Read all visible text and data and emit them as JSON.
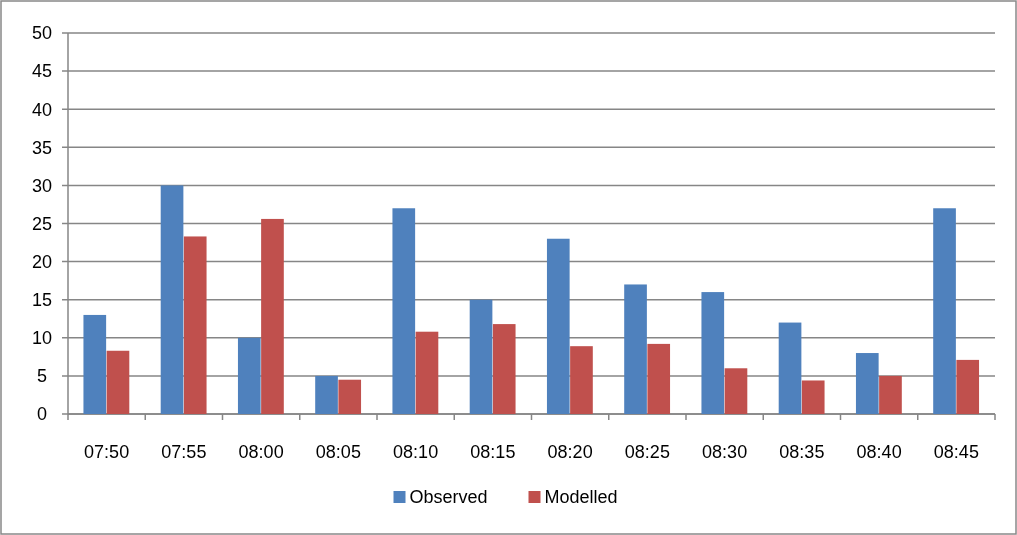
{
  "chart_data": {
    "type": "bar",
    "categories": [
      "07:50",
      "07:55",
      "08:00",
      "08:05",
      "08:10",
      "08:15",
      "08:20",
      "08:25",
      "08:30",
      "08:35",
      "08:40",
      "08:45"
    ],
    "series": [
      {
        "name": "Observed",
        "color": "#4f81bd",
        "values": [
          13,
          30,
          10,
          5,
          27,
          15,
          23,
          17,
          16,
          12,
          8,
          27
        ]
      },
      {
        "name": "Modelled",
        "color": "#c0504d",
        "values": [
          8.3,
          23.3,
          25.6,
          4.5,
          10.8,
          11.8,
          8.9,
          9.2,
          6.0,
          4.4,
          5.0,
          7.1
        ]
      }
    ],
    "ylim": [
      0,
      50
    ],
    "yticks": [
      0,
      5,
      10,
      15,
      20,
      25,
      30,
      35,
      40,
      45,
      50
    ],
    "grid": "y",
    "legend": "bottom"
  }
}
